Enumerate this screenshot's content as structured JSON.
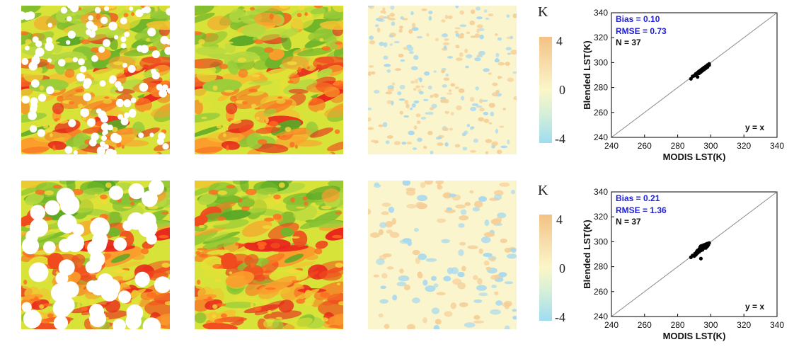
{
  "colorbars": [
    {
      "unit": "K",
      "ticks": [
        "4",
        "0",
        "-4"
      ]
    },
    {
      "unit": "K",
      "ticks": [
        "4",
        "0",
        "-4"
      ]
    }
  ],
  "chart_data": [
    {
      "type": "scatter",
      "xlabel": "MODIS LST(K)",
      "ylabel": "Blended LST(K)",
      "xlim": [
        240,
        340
      ],
      "ylim": [
        240,
        340
      ],
      "xticks": [
        "240",
        "260",
        "280",
        "300",
        "320",
        "340"
      ],
      "yticks": [
        "240",
        "260",
        "280",
        "300",
        "320",
        "340"
      ],
      "reference_line": "y = x",
      "stats": {
        "bias": "Bias = 0.10",
        "rmse": "RMSE = 0.73",
        "n": "N = 37"
      },
      "x": [
        288,
        289,
        290,
        290.5,
        291,
        291.5,
        292,
        292,
        292.5,
        293,
        293,
        293.5,
        294,
        294,
        294.5,
        295,
        295,
        295.5,
        296,
        296,
        296.5,
        297,
        297,
        297.5,
        298,
        298,
        298.5,
        299,
        299,
        293,
        291,
        295,
        296,
        297,
        294,
        292,
        298
      ],
      "y": [
        287,
        289,
        289.5,
        290,
        291,
        291,
        292,
        288.5,
        292.5,
        293,
        291.5,
        293.5,
        294,
        292.5,
        294.5,
        295,
        293.5,
        295.5,
        296,
        294.5,
        296,
        297,
        295.5,
        297,
        298,
        296.5,
        298,
        299,
        298,
        292,
        290.5,
        294,
        295,
        296,
        293,
        291.5,
        297.5
      ]
    },
    {
      "type": "scatter",
      "xlabel": "MODIS LST(K)",
      "ylabel": "Blended LST(K)",
      "xlim": [
        240,
        340
      ],
      "ylim": [
        240,
        340
      ],
      "xticks": [
        "240",
        "260",
        "280",
        "300",
        "320",
        "340"
      ],
      "yticks": [
        "240",
        "260",
        "280",
        "300",
        "320",
        "340"
      ],
      "reference_line": "y = x",
      "stats": {
        "bias": "Bias = 0.21",
        "rmse": "RMSE = 1.36",
        "n": "N = 37"
      },
      "x": [
        288,
        289,
        290,
        290.5,
        291,
        291.5,
        292,
        292,
        292.5,
        293,
        293,
        293.5,
        294,
        294,
        294.5,
        295,
        295,
        295.5,
        296,
        296,
        296.5,
        297,
        297,
        297.5,
        298,
        298,
        298.5,
        299,
        293,
        291,
        295,
        296,
        297,
        294,
        292,
        298,
        294
      ],
      "y": [
        287.5,
        289,
        288.5,
        290.5,
        290,
        292,
        291,
        293,
        292,
        294,
        292.5,
        295.5,
        293,
        296,
        294.5,
        297,
        293.5,
        296,
        295,
        297.5,
        295.5,
        298,
        296,
        297,
        298.5,
        296.5,
        297.5,
        299,
        292,
        289.5,
        294.5,
        297,
        295,
        296.5,
        291,
        298,
        286.5
      ]
    }
  ]
}
